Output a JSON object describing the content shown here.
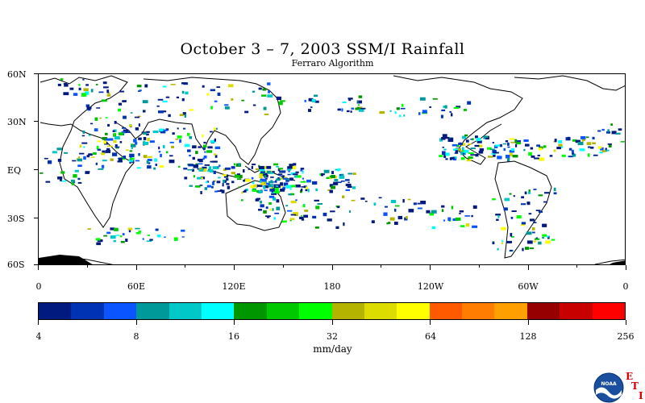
{
  "header": {
    "title": "October 3 – 7, 2003 SSM/I Rainfall",
    "subtitle": "Ferraro Algorithm"
  },
  "map": {
    "lat_labels": [
      "60N",
      "30N",
      "EQ",
      "30S",
      "60S"
    ],
    "lon_labels": [
      "0",
      "60E",
      "120E",
      "180",
      "120W",
      "60W",
      "0"
    ]
  },
  "colorbar": {
    "tick_labels": [
      "4",
      "8",
      "16",
      "32",
      "64",
      "128",
      "256"
    ],
    "units": "mm/day",
    "colors": [
      "#001a80",
      "#0033b3",
      "#0a55ff",
      "#009999",
      "#00c8c8",
      "#00ffff",
      "#009600",
      "#00c800",
      "#00ff00",
      "#b3b300",
      "#dcdc00",
      "#ffff00",
      "#ff5a00",
      "#ff7d00",
      "#ffa000",
      "#960000",
      "#c80000",
      "#ff0000"
    ]
  },
  "logos": {
    "noaa": "NOAA",
    "eti_letters": [
      "E",
      "T",
      "I"
    ]
  }
}
